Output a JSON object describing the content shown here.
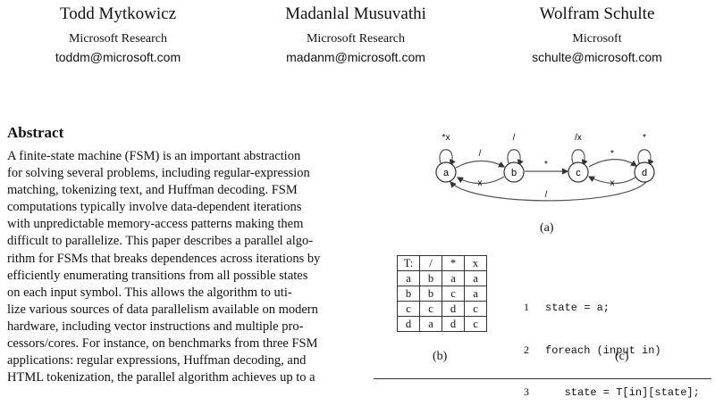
{
  "authors": [
    {
      "name": "Todd Mytkowicz",
      "affiliation": "Microsoft Research",
      "email": "toddm@microsoft.com"
    },
    {
      "name": "Madanlal Musuvathi",
      "affiliation": "Microsoft Research",
      "email": "madanm@microsoft.com"
    },
    {
      "name": "Wolfram Schulte",
      "affiliation": "Microsoft",
      "email": "schulte@microsoft.com"
    }
  ],
  "abstract": {
    "heading": "Abstract",
    "lines": [
      "A finite-state machine (FSM) is an important abstraction",
      "for solving several problems, including regular-expression",
      "matching, tokenizing text, and Huffman decoding. FSM",
      "computations typically involve data-dependent iterations",
      "with unpredictable memory-access patterns making them",
      "difficult to parallelize. This paper describes a parallel algo-",
      "rithm for FSMs that breaks dependences across iterations by",
      "efficiently enumerating transitions from all possible states",
      "on each input symbol. This allows the algorithm to uti-",
      "lize various sources of data parallelism available on modern",
      "hardware, including vector instructions and multiple pro-",
      "cessors/cores. For instance, on benchmarks from three FSM",
      "applications: regular expressions, Huffman decoding, and",
      "HTML tokenization, the parallel algorithm achieves up to a"
    ]
  },
  "figure_a": {
    "caption": "(a)",
    "states": [
      "a",
      "b",
      "c",
      "d"
    ],
    "labels": {
      "a_self": "*x",
      "a_to_b": "/",
      "b_to_a": "x",
      "b_self": "/",
      "b_to_c": "*",
      "c_self": "/x",
      "c_to_d": "*",
      "d_to_c": "x",
      "d_self": "*",
      "d_to_a": "/"
    }
  },
  "figure_b": {
    "caption": "(b)",
    "header": [
      "T:",
      "/",
      "*",
      "x"
    ],
    "rows": [
      [
        "a",
        "b",
        "a",
        "a"
      ],
      [
        "b",
        "b",
        "c",
        "a"
      ],
      [
        "c",
        "c",
        "d",
        "c"
      ],
      [
        "d",
        "a",
        "d",
        "c"
      ]
    ]
  },
  "figure_c": {
    "caption": "(c)",
    "lines": [
      {
        "num": "1",
        "code": "state = a;"
      },
      {
        "num": "2",
        "code": "foreach (input in)"
      },
      {
        "num": "3",
        "code": "   state = T[in][state];"
      }
    ]
  }
}
